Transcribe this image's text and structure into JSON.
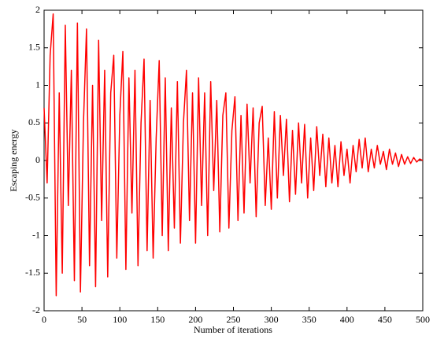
{
  "chart_data": {
    "type": "line",
    "xlabel": "Number of iterations",
    "ylabel": "Escaping energy",
    "x": [
      0,
      4,
      8,
      12,
      16,
      20,
      24,
      28,
      32,
      36,
      40,
      44,
      48,
      52,
      56,
      60,
      64,
      68,
      72,
      76,
      80,
      84,
      88,
      92,
      96,
      100,
      104,
      108,
      112,
      116,
      120,
      124,
      128,
      132,
      136,
      140,
      144,
      148,
      152,
      156,
      160,
      164,
      168,
      172,
      176,
      180,
      184,
      188,
      192,
      196,
      200,
      204,
      208,
      212,
      216,
      220,
      224,
      228,
      232,
      236,
      240,
      244,
      248,
      252,
      256,
      260,
      264,
      268,
      272,
      276,
      280,
      284,
      288,
      292,
      296,
      300,
      304,
      308,
      312,
      316,
      320,
      324,
      328,
      332,
      336,
      340,
      344,
      348,
      352,
      356,
      360,
      364,
      368,
      372,
      376,
      380,
      384,
      388,
      392,
      396,
      400,
      404,
      408,
      412,
      416,
      420,
      424,
      428,
      432,
      436,
      440,
      444,
      448,
      452,
      456,
      460,
      464,
      468,
      472,
      476,
      480,
      484,
      488,
      492,
      496,
      500
    ],
    "series": [
      {
        "color": "#ff0000",
        "values": [
          0.7,
          -0.3,
          1.4,
          1.95,
          -1.8,
          0.9,
          -1.5,
          1.8,
          -0.6,
          1.2,
          -1.6,
          1.83,
          -1.75,
          0.5,
          1.75,
          -1.4,
          1.0,
          -1.68,
          1.6,
          -0.8,
          1.2,
          -1.55,
          0.9,
          1.4,
          -1.3,
          0.6,
          1.45,
          -1.45,
          1.1,
          -0.7,
          1.2,
          -1.4,
          0.5,
          1.35,
          -1.2,
          0.8,
          -1.3,
          0.3,
          1.33,
          -1.0,
          1.1,
          -1.2,
          0.7,
          -0.9,
          1.05,
          -1.1,
          0.5,
          1.2,
          -0.8,
          0.9,
          -1.1,
          1.1,
          -0.6,
          0.9,
          -1.0,
          1.05,
          -0.4,
          0.8,
          -0.95,
          0.6,
          0.9,
          -0.9,
          0.4,
          0.85,
          -0.8,
          0.6,
          -0.7,
          0.75,
          -0.3,
          0.7,
          -0.75,
          0.5,
          0.72,
          -0.6,
          0.3,
          -0.65,
          0.65,
          -0.5,
          0.6,
          -0.2,
          0.55,
          -0.55,
          0.4,
          -0.45,
          0.5,
          -0.3,
          0.48,
          -0.5,
          0.3,
          -0.4,
          0.45,
          -0.2,
          0.35,
          -0.35,
          0.3,
          -0.3,
          0.2,
          -0.35,
          0.25,
          -0.2,
          0.15,
          -0.3,
          0.2,
          -0.15,
          0.28,
          -0.1,
          0.3,
          -0.15,
          0.15,
          -0.1,
          0.2,
          -0.05,
          0.12,
          -0.12,
          0.15,
          -0.05,
          0.1,
          -0.08,
          0.08,
          -0.05,
          0.05,
          -0.04,
          0.04,
          -0.02,
          0.02,
          0.0
        ]
      }
    ],
    "xlim": [
      0,
      500
    ],
    "xticks": [
      0,
      50,
      100,
      150,
      200,
      250,
      300,
      350,
      400,
      450,
      500
    ],
    "ylim": [
      -2,
      2
    ],
    "yticks": [
      -2,
      -1.5,
      -1,
      -0.5,
      0,
      0.5,
      1,
      1.5,
      2
    ],
    "grid": false
  }
}
